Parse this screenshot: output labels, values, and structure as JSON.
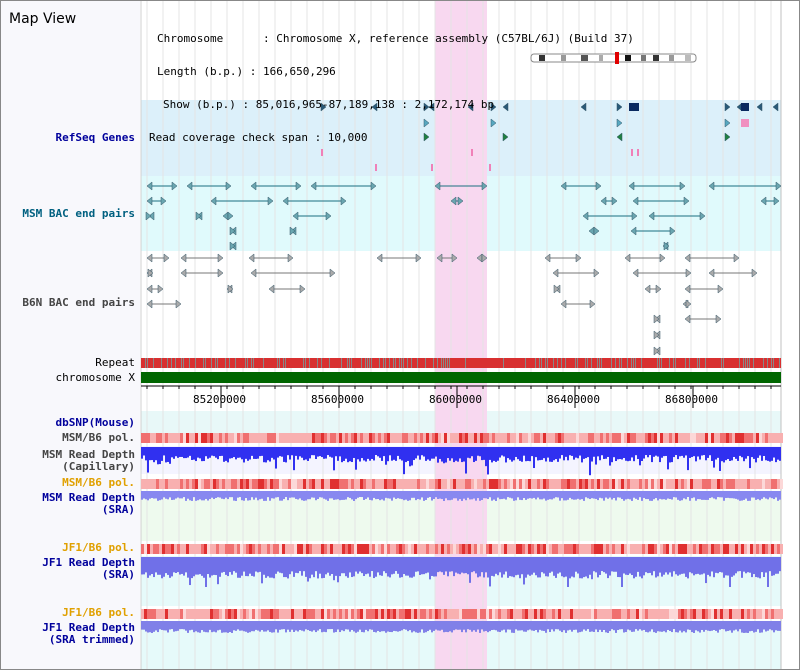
{
  "window": {
    "title": "Map View"
  },
  "info": {
    "chromosome_line": "Chromosome      : Chromosome X, reference assembly (C57BL/6J) (Build 37)",
    "length_line": "Length (b.p.) : 166,650,296",
    "show_line": "Show (b.p.) : 85,016,965-87,189,138 : 2,172,174 bp",
    "coverage_line": "Read coverage check span : 10,000"
  },
  "tracks": {
    "refseq": "RefSeq Genes",
    "msm_bac": "MSM BAC end pairs",
    "b6n_bac": "B6N BAC end pairs",
    "repeat": "Repeat",
    "chromosome": "chromosome X",
    "dbsnp": "dbSNP(Mouse)",
    "msm_pol1": "MSM/B6 pol.",
    "msm_depth_cap": "MSM Read Depth",
    "msm_depth_cap_sub": "(Capillary)",
    "msm_pol2": "MSM/B6 pol.",
    "msm_depth_sra": "MSM Read Depth",
    "msm_depth_sra_sub": "(SRA)",
    "jf1_pol1": "JF1/B6 pol.",
    "jf1_depth_sra": "JF1 Read Depth",
    "jf1_depth_sra_sub": "(SRA)",
    "jf1_pol2": "JF1/B6 pol.",
    "jf1_depth_trim": "JF1 Read Depth",
    "jf1_depth_trim_sub": "(SRA trimmed)"
  },
  "axis": {
    "ticks": [
      "85200000",
      "85600000",
      "86000000",
      "86400000",
      "86800000"
    ],
    "tick_values": [
      85200000,
      85600000,
      86000000,
      86400000,
      86800000
    ]
  },
  "colors": {
    "label_blue": "#00009c",
    "label_gray": "#444444",
    "label_orange": "#e0a000",
    "label_teal": "#006080",
    "highlight": "#f8d8f0",
    "refseq_band": "#dcf0fa",
    "msm_band": "#e0fafc",
    "depth_blue": "#3838f0",
    "depth_light": "#9898f0",
    "chrom_green": "#006600"
  }
}
